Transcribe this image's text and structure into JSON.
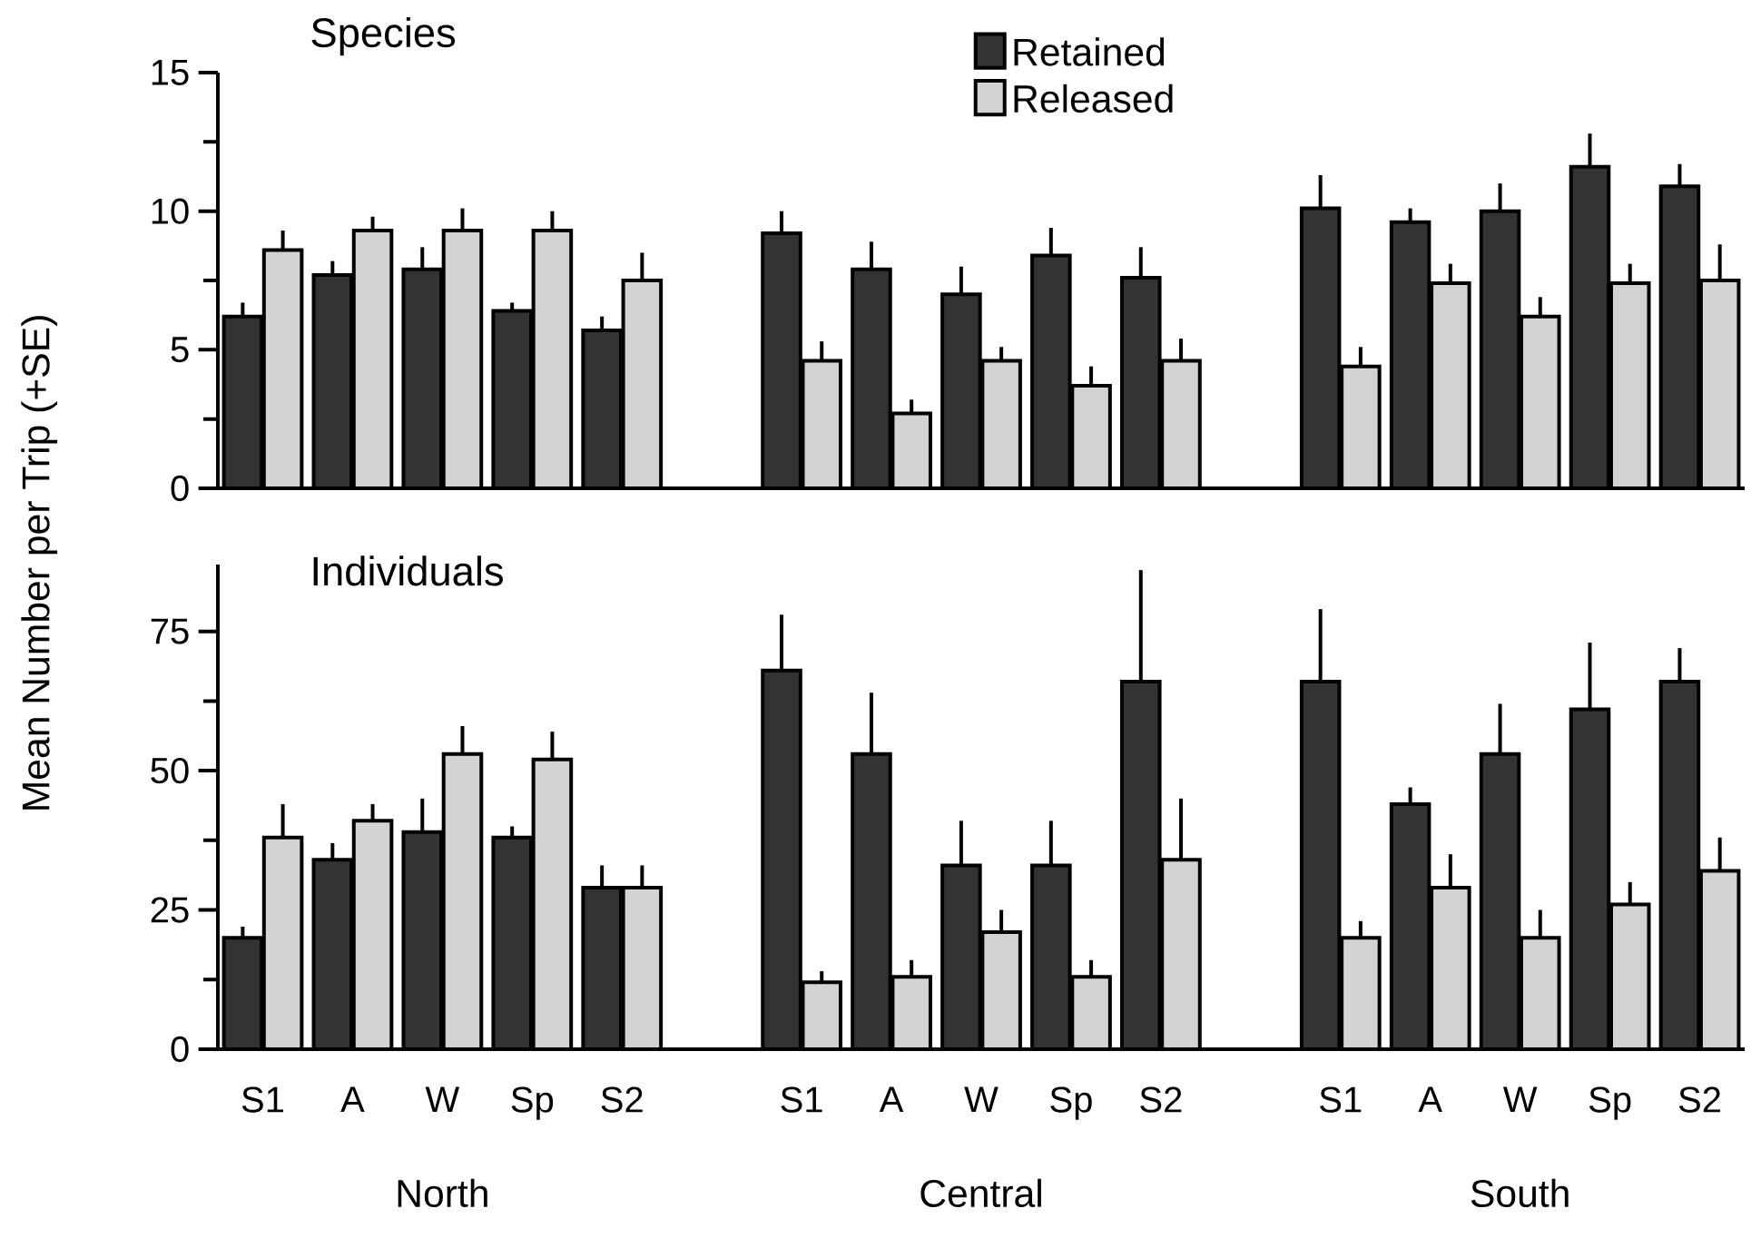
{
  "chart_data": [
    {
      "type": "bar",
      "title": "Species",
      "ylabel": "Mean Number per Trip (+SE)",
      "categories": [
        null,
        null,
        null,
        null,
        null,
        null,
        null,
        null,
        null,
        null,
        null,
        null,
        null,
        null,
        null,
        null,
        null
      ],
      "series": [
        {
          "name": "Retained",
          "color": "#333333",
          "values": [
            6.2,
            7.7,
            7.9,
            6.4,
            5.7,
            null,
            9.2,
            7.9,
            7.0,
            8.4,
            7.6,
            null,
            10.1,
            9.6,
            10.0,
            11.6,
            10.9
          ],
          "errors": [
            0.5,
            0.5,
            0.8,
            0.3,
            0.5,
            null,
            0.8,
            1.0,
            1.0,
            1.0,
            1.1,
            null,
            1.2,
            0.5,
            1.0,
            1.2,
            0.8
          ]
        },
        {
          "name": "Released",
          "color": "#d3d3d3",
          "values": [
            8.6,
            9.3,
            9.3,
            9.3,
            7.5,
            null,
            4.6,
            2.7,
            4.6,
            3.7,
            4.6,
            null,
            4.4,
            7.4,
            6.2,
            7.4,
            7.5
          ],
          "errors": [
            0.7,
            0.5,
            0.8,
            0.7,
            1.0,
            null,
            0.7,
            0.5,
            0.5,
            0.7,
            0.8,
            null,
            0.7,
            0.7,
            0.7,
            0.7,
            1.3
          ]
        }
      ],
      "ylim": [
        0,
        15
      ],
      "yticks": [
        0,
        5,
        10,
        15
      ],
      "tick_labels": "y",
      "legend": "top"
    },
    {
      "type": "bar",
      "title": "Individuals",
      "categories": [
        "S1",
        "A",
        "W",
        "Sp",
        "S2",
        null,
        "S1",
        "A",
        "W",
        "Sp",
        "S2",
        null,
        "S1",
        "A",
        "W",
        "Sp",
        "S2"
      ],
      "series": [
        {
          "color": "#333333",
          "values": [
            20,
            34,
            39,
            38,
            29,
            null,
            68,
            53,
            33,
            33,
            66,
            null,
            66,
            44,
            53,
            61,
            66
          ],
          "errors": [
            2,
            3,
            6,
            2,
            4,
            null,
            10,
            11,
            8,
            8,
            20,
            null,
            13,
            3,
            9,
            12,
            6
          ]
        },
        {
          "color": "#d3d3d3",
          "values": [
            38,
            41,
            53,
            52,
            29,
            null,
            12,
            13,
            21,
            13,
            34,
            null,
            20,
            29,
            20,
            26,
            32
          ],
          "errors": [
            6,
            3,
            5,
            5,
            4,
            null,
            2,
            3,
            4,
            3,
            11,
            null,
            3,
            6,
            5,
            4,
            6
          ]
        }
      ],
      "ylim": [
        0,
        87
      ],
      "yticks": [
        0,
        25,
        50,
        75
      ],
      "annotations": [
        "North",
        "Central",
        "South"
      ]
    }
  ]
}
